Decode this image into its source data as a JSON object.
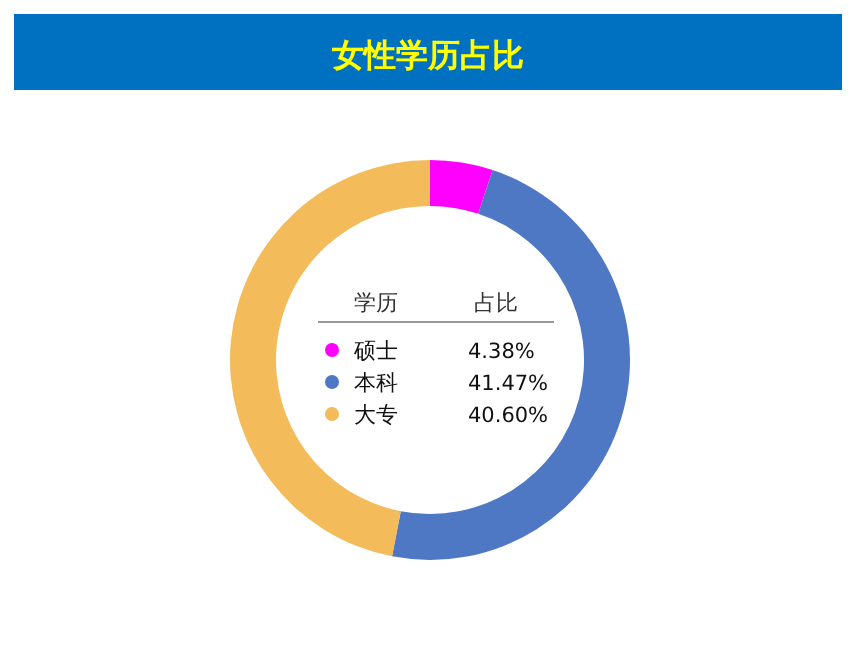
{
  "chart_data": {
    "type": "donut",
    "title": "女性学历占比",
    "legend_title": "学历",
    "annotations": [
      "占比"
    ],
    "categories": [
      "硕士",
      "本科",
      "大专"
    ],
    "values": [
      4.38,
      41.47,
      40.6
    ],
    "value_labels": [
      "4.38%",
      "41.47%",
      "40.60%"
    ],
    "colors": [
      "#ff00ff",
      "#4f78c4",
      "#f3bb5a"
    ],
    "legend": "center"
  }
}
